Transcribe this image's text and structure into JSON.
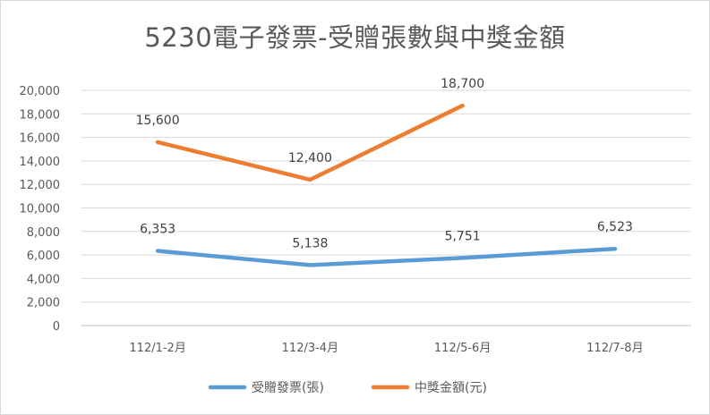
{
  "chart_data": {
    "type": "line",
    "title": "5230電子發票-受贈張數與中獎金額",
    "categories": [
      "112/1-2月",
      "112/3-4月",
      "112/5-6月",
      "112/7-8月"
    ],
    "series": [
      {
        "name": "受贈發票(張)",
        "values": [
          6353,
          5138,
          5751,
          6523
        ],
        "labels": [
          "6,353",
          "5,138",
          "5,751",
          "6,523"
        ],
        "color": "#5b9bd5"
      },
      {
        "name": "中獎金額(元)",
        "values": [
          15600,
          12400,
          18700,
          null
        ],
        "labels": [
          "15,600",
          "12,400",
          "18,700",
          ""
        ],
        "color": "#ed7d31"
      }
    ],
    "ylim": [
      0,
      20000
    ],
    "yticks": [
      "0",
      "2,000",
      "4,000",
      "6,000",
      "8,000",
      "10,000",
      "12,000",
      "14,000",
      "16,000",
      "18,000",
      "20,000"
    ],
    "grid": true,
    "legend": "bottom",
    "xlabel": "",
    "ylabel": ""
  }
}
